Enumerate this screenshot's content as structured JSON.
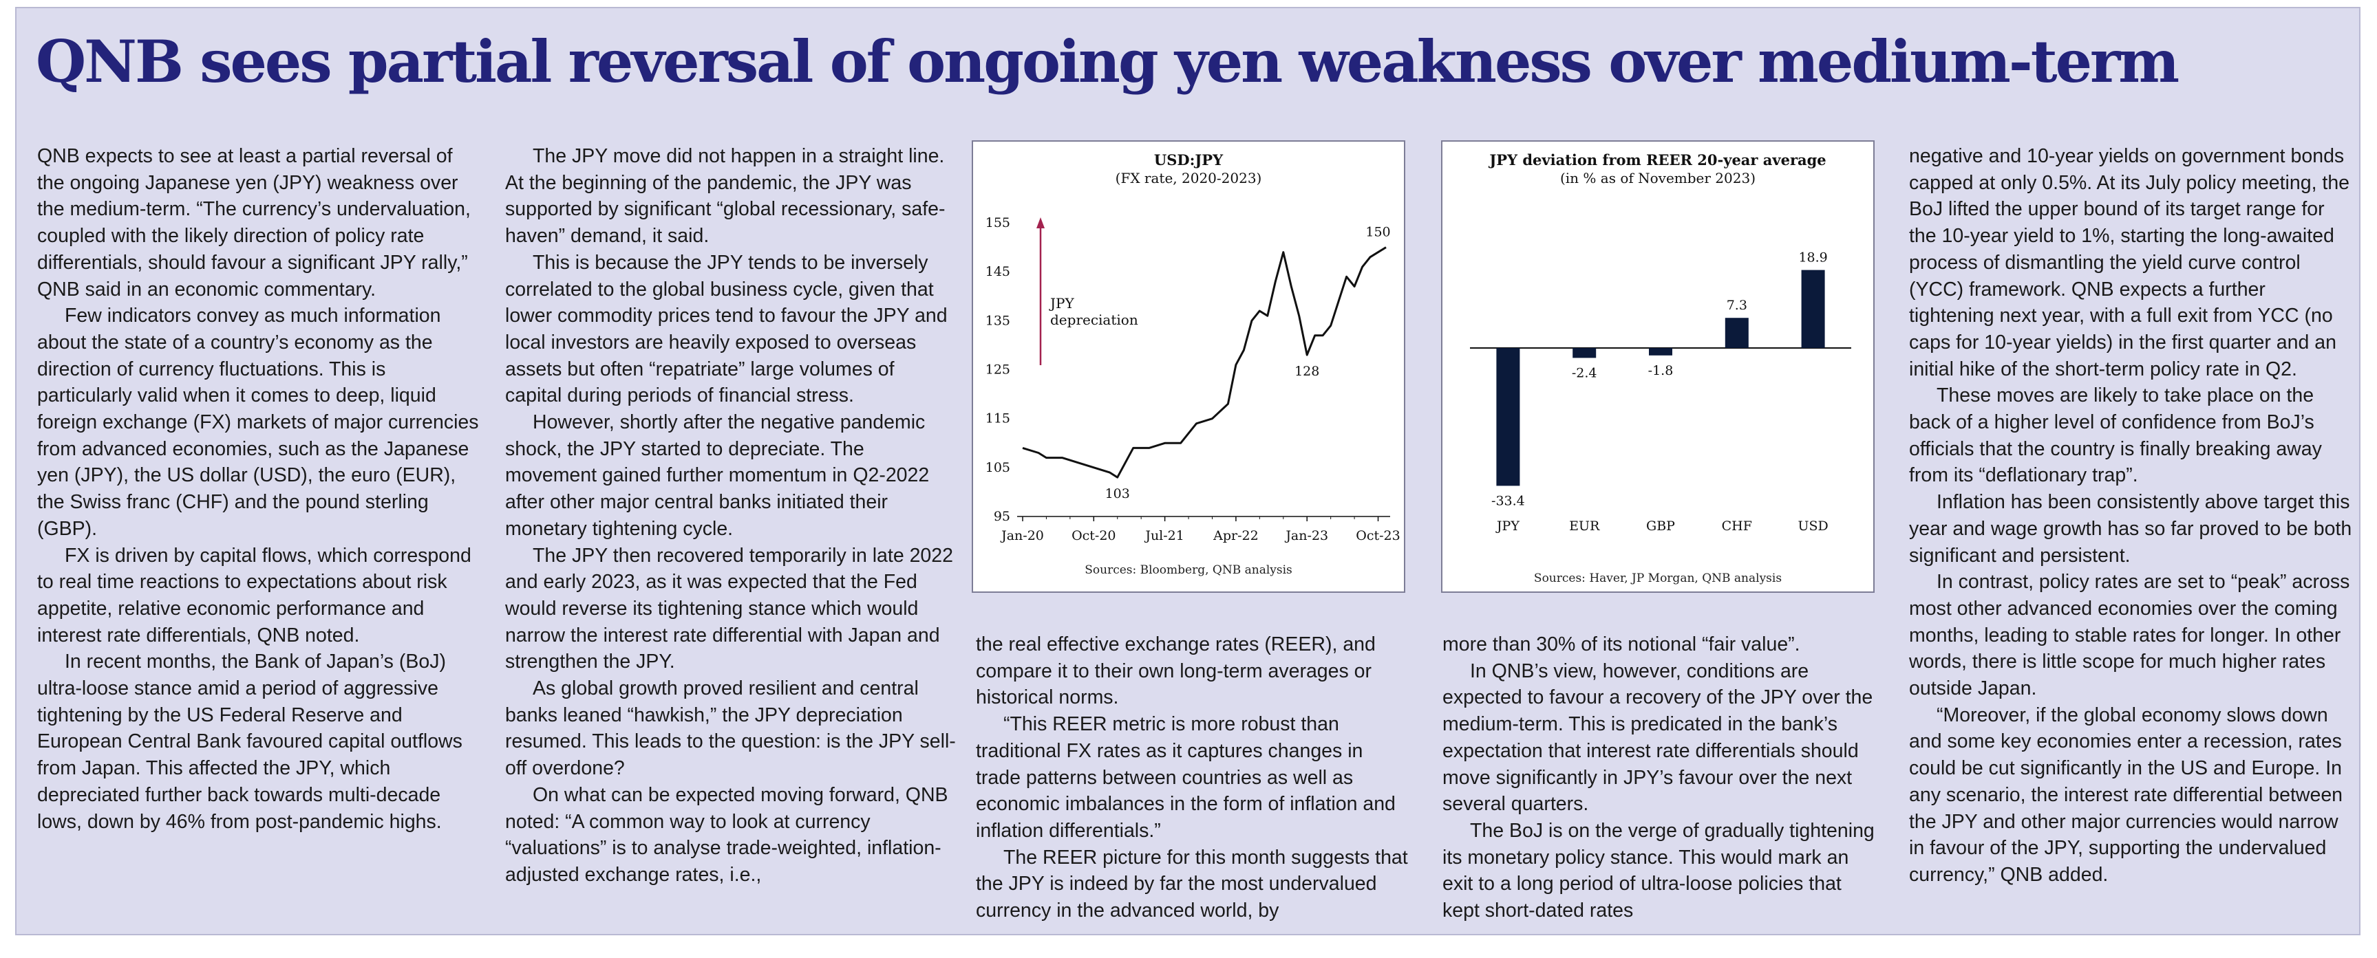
{
  "headline": "QNB sees partial reversal of ongoing yen weakness over medium-term",
  "columns": {
    "c1": [
      "QNB expects to see at least a partial reversal of the ongoing Japanese yen (JPY) weakness over the medium-term. “The currency’s undervaluation, coupled with the likely direction of policy rate differentials, should favour a significant JPY rally,” QNB said in an economic commentary.",
      "Few indicators convey as much information about the state of a country’s economy as the direction of currency fluctuations. This is particularly valid when it comes to deep, liquid foreign exchange (FX) markets of major currencies from advanced economies, such as the Japanese yen (JPY), the US dollar (USD), the euro (EUR), the Swiss franc (CHF) and the pound sterling (GBP).",
      "FX is driven by capital flows, which correspond to real time reactions to expectations about risk appetite, relative economic performance and interest rate differentials, QNB noted.",
      "In recent months, the Bank of Japan’s (BoJ) ultra-loose stance amid a period of aggressive tightening by the US Federal Reserve and European Central Bank favoured capital outflows from Japan. This affected the JPY, which depreciated further back towards multi-decade lows, down by 46% from post-pandemic highs."
    ],
    "c2": [
      "The JPY move did not happen in a straight line. At the beginning of the pandemic, the JPY was supported by significant “global recessionary, safe-haven” demand, it said.",
      "This is because the JPY tends to be inversely correlated to the global business cycle, given that lower commodity prices tend to favour the JPY and local investors are heavily exposed to overseas assets but often “repatriate” large volumes of capital during periods of financial stress.",
      "However, shortly after the negative pandemic shock, the JPY started to depreciate. The movement gained further momentum in Q2-2022 after other major central banks initiated their monetary tightening cycle.",
      "The JPY then recovered temporarily in late 2022 and early 2023, as it was expected that the Fed would reverse its tightening stance which would narrow the interest rate differential with Japan and strengthen the JPY.",
      "As global growth proved resilient and central banks leaned “hawkish,” the JPY depreciation resumed. This leads to the question: is the JPY sell-off overdone?",
      "On what can be expected moving forward, QNB noted: “A common way to look at currency “valuations” is to analyse trade-weighted, inflation-adjusted exchange rates, i.e.,"
    ],
    "c3": [
      "the real effective exchange rates (REER), and compare it to their own long-term averages or historical norms.",
      "“This REER metric is more robust than traditional FX rates as it captures changes in trade patterns between countries as well as economic imbalances in the form of inflation and inflation differentials.”",
      "The REER picture for this month suggests that the JPY is indeed by far the most undervalued currency in the advanced world, by"
    ],
    "c4": [
      "more than 30% of its notional “fair value”.",
      "In QNB’s view, however, conditions are expected to favour a recovery of the JPY over the medium-term. This is predicated in the bank’s expectation that interest rate differentials should move significantly in JPY’s favour over the next several quarters.",
      "The BoJ is on the verge of gradually tightening its monetary policy stance. This would mark an exit to a long period of ultra-loose policies that kept short-dated rates"
    ],
    "c5": [
      "negative and 10-year yields on government bonds capped at only 0.5%. At its July policy meeting, the BoJ lifted the upper bound of its target range for the 10-year yield to 1%, starting the long-awaited process of dismantling the yield curve control (YCC) framework. QNB expects a further tightening next year, with a full exit from YCC (no caps for 10-year yields) in the first quarter and an initial hike of the short-term policy rate in Q2.",
      "These moves are likely to take place on the back of a higher level of confidence from BoJ’s officials that the country is finally breaking away from its “deflationary trap”.",
      "Inflation has been consistently above target this year and wage growth has so far proved to be both significant and persistent.",
      "In contrast, policy rates are set to “peak” across most other advanced economies over the coming months, leading to stable rates for longer. In other words, there is little scope for much higher rates outside Japan.",
      "“Moreover, if the global economy slows down and some key economies enter a recession, rates could be cut significantly in the US and Europe. In any scenario, the interest rate differential between the JPY and other major currencies would narrow in favour of the JPY, supporting the undervalued currency,” QNB added."
    ]
  },
  "chart_data": [
    {
      "type": "line",
      "title": "USD:JPY",
      "subtitle": "(FX rate, 2020-2023)",
      "source": "Sources: Bloomberg, QNB analysis",
      "x_ticks": [
        "Jan-20",
        "Oct-20",
        "Jul-21",
        "Apr-22",
        "Jan-23",
        "Oct-23"
      ],
      "y_ticks": [
        95,
        105,
        115,
        125,
        135,
        145,
        155
      ],
      "ylim": [
        95,
        155
      ],
      "annotation": "JPY depreciation",
      "point_labels": [
        "103",
        "128",
        "150"
      ],
      "series": [
        {
          "x": [
            "2020-01",
            "2020-03",
            "2020-04",
            "2020-06",
            "2020-08",
            "2020-10",
            "2020-12",
            "2021-01",
            "2021-03",
            "2021-05",
            "2021-07",
            "2021-09",
            "2021-11",
            "2022-01",
            "2022-03",
            "2022-04",
            "2022-05",
            "2022-06",
            "2022-07",
            "2022-08",
            "2022-09",
            "2022-10",
            "2022-11",
            "2022-12",
            "2023-01",
            "2023-02",
            "2023-03",
            "2023-04",
            "2023-05",
            "2023-06",
            "2023-07",
            "2023-08",
            "2023-09",
            "2023-10",
            "2023-11"
          ],
          "values": [
            109,
            108,
            107,
            107,
            106,
            105,
            104,
            103,
            109,
            109,
            110,
            110,
            114,
            115,
            118,
            126,
            129,
            135,
            137,
            136,
            143,
            149,
            142,
            136,
            128,
            132,
            132,
            134,
            139,
            144,
            142,
            146,
            148,
            149,
            150
          ]
        }
      ]
    },
    {
      "type": "bar",
      "title": "JPY deviation from REER 20-year average",
      "subtitle": "(in % as of November 2023)",
      "source": "Sources: Haver, JP Morgan, QNB analysis",
      "categories": [
        "JPY",
        "EUR",
        "GBP",
        "CHF",
        "USD"
      ],
      "values": [
        -33.4,
        -2.4,
        -1.8,
        7.3,
        18.9
      ],
      "value_labels": [
        "-33.4",
        "-2.4",
        "-1.8",
        "7.3",
        "18.9"
      ],
      "colors": {
        "bar": "#0b1a3a",
        "annotation": "#a3224f"
      }
    }
  ]
}
